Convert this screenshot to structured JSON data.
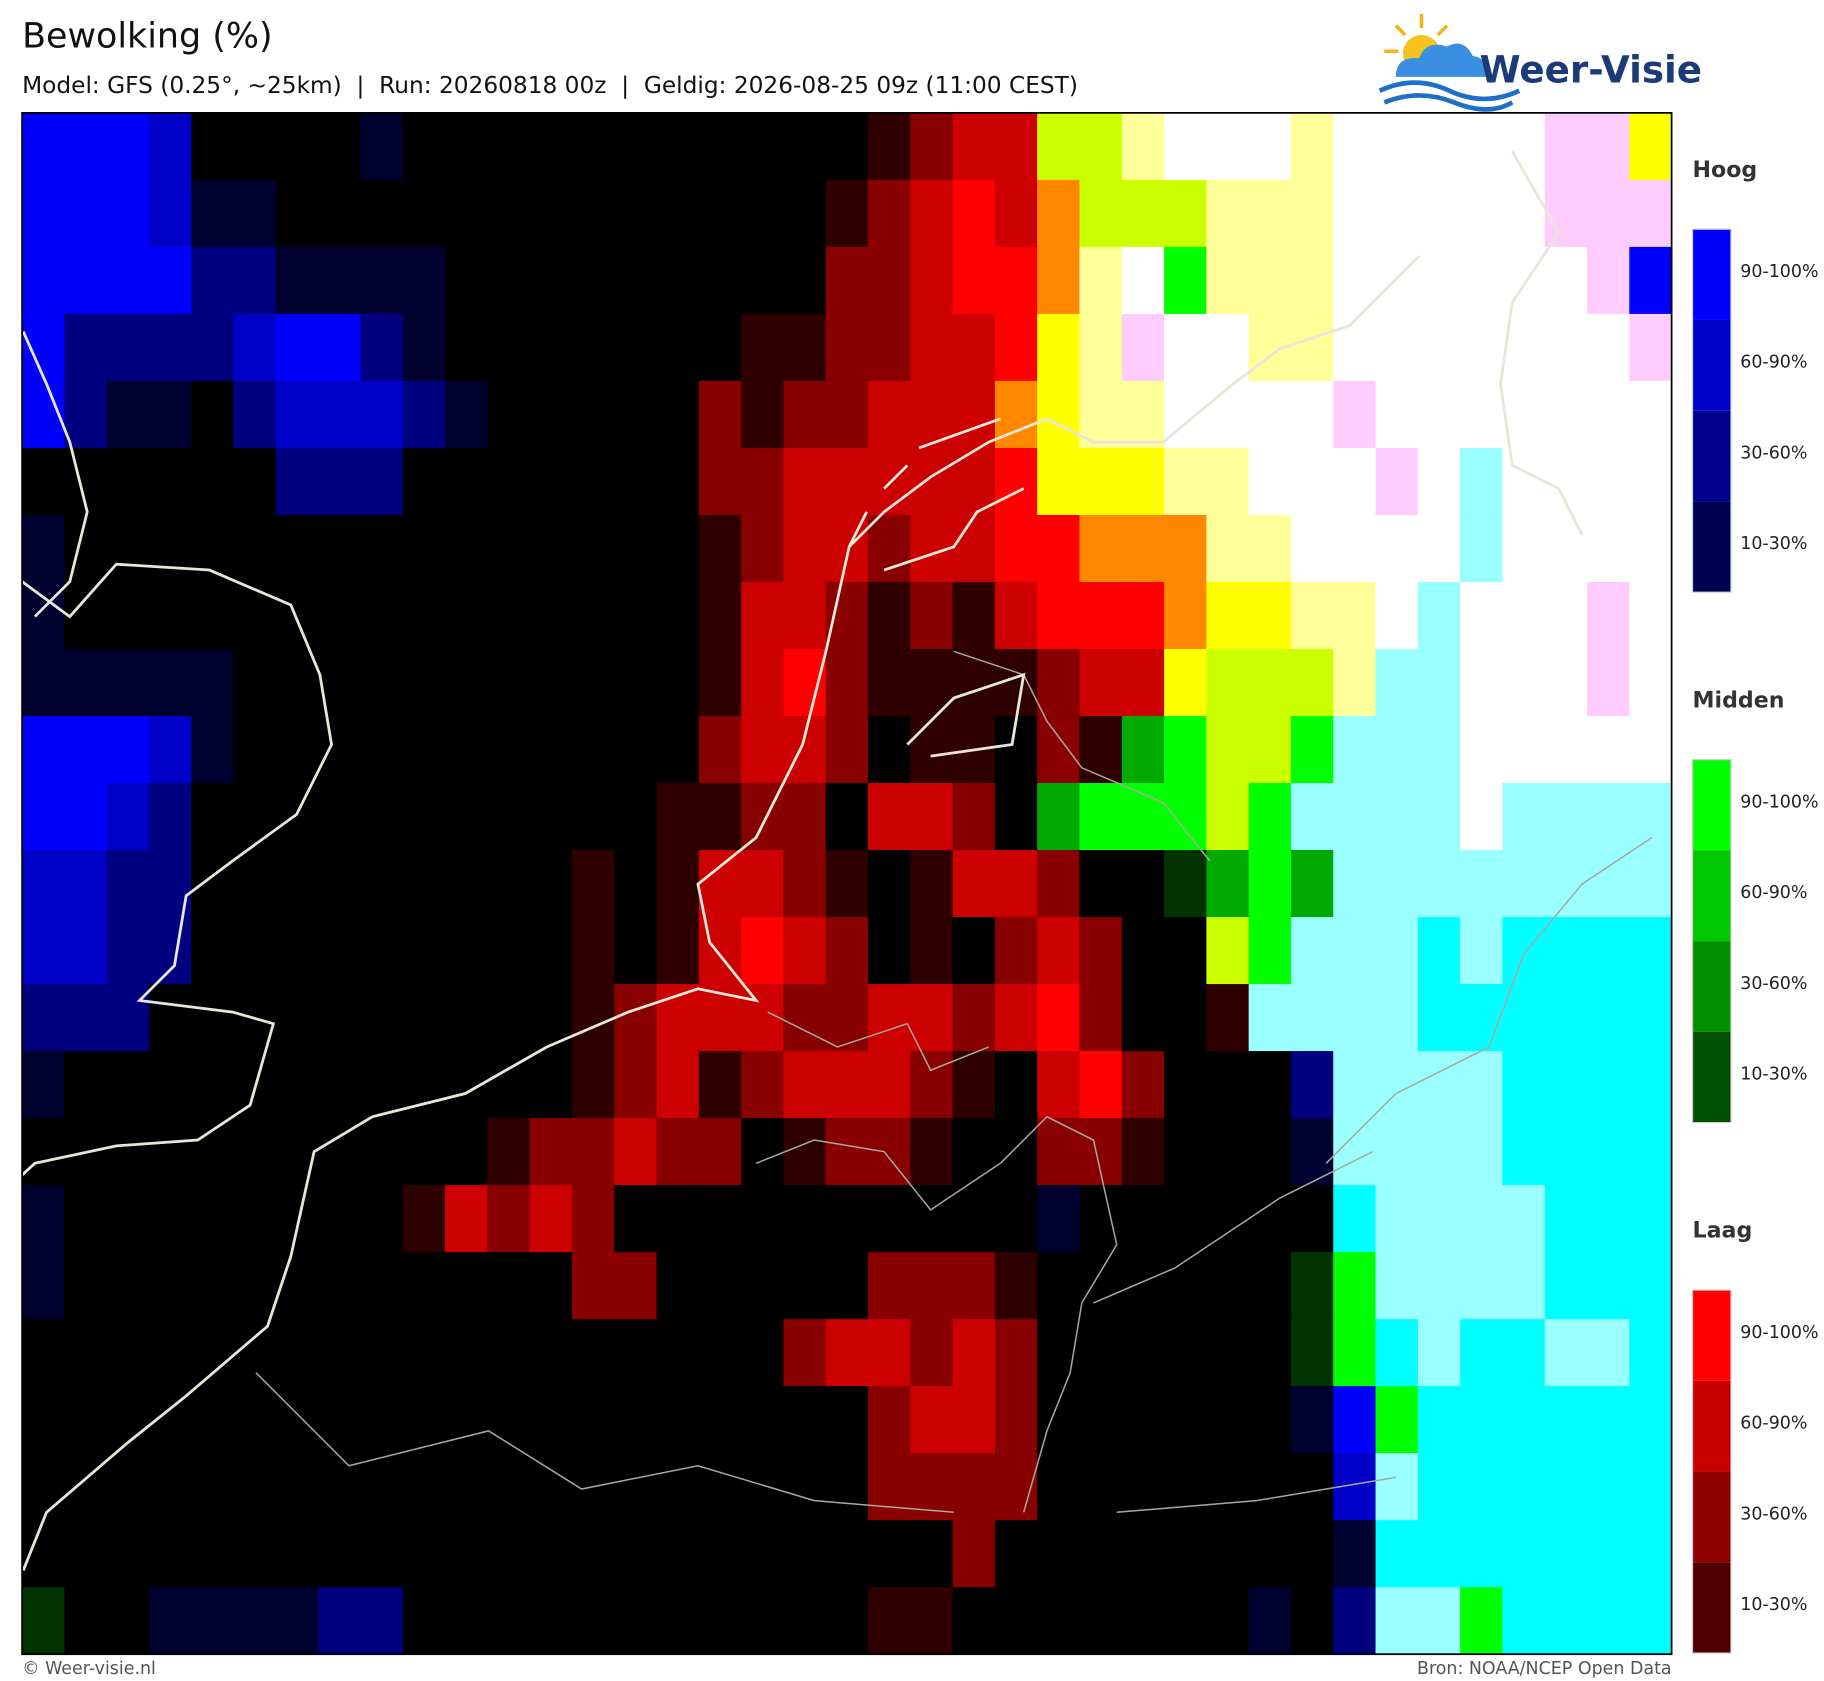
{
  "header": {
    "title": "Bewolking (%)",
    "subtitle": "Model: GFS (0.25°, ~25km)  |  Run: 20260818 00z  |  Geldig: 2026-08-25 09z (11:00 CEST)"
  },
  "logo": {
    "text": "Weer-Visie"
  },
  "legends": [
    {
      "title": "Hoog",
      "labels": [
        "90-100%",
        "60-90%",
        "30-60%",
        "10-30%"
      ]
    },
    {
      "title": "Midden",
      "labels": [
        "90-100%",
        "60-90%",
        "30-60%",
        "10-30%"
      ]
    },
    {
      "title": "Laag",
      "labels": [
        "90-100%",
        "60-90%",
        "30-60%",
        "10-30%"
      ]
    }
  ],
  "footer": {
    "left": "© Weer-visie.nl",
    "right": "Bron: NOAA/NCEP Open Data"
  }
}
